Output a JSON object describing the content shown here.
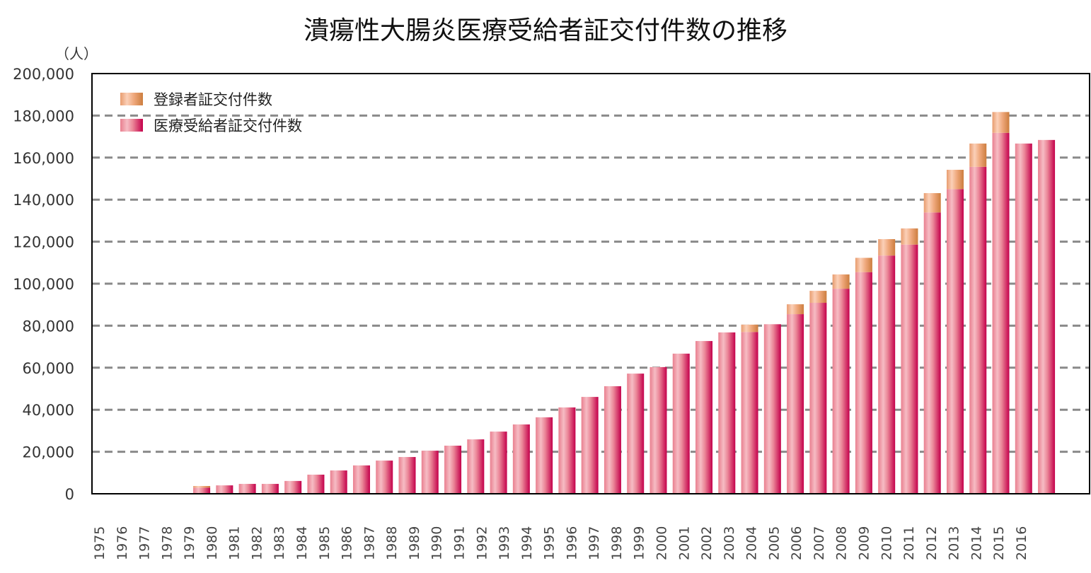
{
  "chart_data": {
    "type": "bar",
    "stacked": true,
    "title": "潰瘍性大腸炎医療受給者証交付件数の推移",
    "ylabel": "（人）",
    "xlabel": "",
    "ylim": [
      0,
      200000
    ],
    "yticks": [
      "0",
      "20,000",
      "40,000",
      "60,000",
      "80,000",
      "100,000",
      "120,000",
      "140,000",
      "160,000",
      "180,000",
      "200,000"
    ],
    "ytick_values": [
      0,
      20000,
      40000,
      60000,
      80000,
      100000,
      120000,
      140000,
      160000,
      180000,
      200000
    ],
    "grid": true,
    "legend_position": "top-left",
    "categories": [
      "1975",
      "1976",
      "1977",
      "1978",
      "1979",
      "1980",
      "1981",
      "1982",
      "1983",
      "1984",
      "1985",
      "1986",
      "1987",
      "1988",
      "1989",
      "1990",
      "1991",
      "1992",
      "1993",
      "1994",
      "1995",
      "1996",
      "1997",
      "1998",
      "1999",
      "2000",
      "2001",
      "2002",
      "2003",
      "2004",
      "2005",
      "2006",
      "2007",
      "2008",
      "2009",
      "2010",
      "2011",
      "2012",
      "2013",
      "2014",
      "2015",
      "2016"
    ],
    "series": [
      {
        "name": "医療受給者証交付件数",
        "color": "#d81b5a",
        "values": [
          0,
          0,
          0,
          0,
          2900,
          4000,
          4700,
          4700,
          6100,
          9100,
          11100,
          13500,
          15800,
          17500,
          20500,
          22900,
          25900,
          29600,
          33000,
          36400,
          41100,
          46100,
          51200,
          57200,
          60300,
          66700,
          72700,
          76800,
          77000,
          80700,
          85500,
          90900,
          97600,
          105500,
          113400,
          118600,
          133900,
          145000,
          155600,
          171800,
          166700,
          168400
        ]
      },
      {
        "name": "登録者証交付件数",
        "color": "#e8a070",
        "values": [
          0,
          0,
          0,
          0,
          800,
          0,
          0,
          0,
          0,
          0,
          0,
          0,
          0,
          0,
          0,
          0,
          0,
          0,
          0,
          0,
          0,
          0,
          0,
          0,
          0,
          0,
          0,
          0,
          3500,
          0,
          4700,
          5700,
          6800,
          6800,
          7800,
          7700,
          9200,
          9200,
          11100,
          9900,
          0,
          0
        ]
      }
    ]
  }
}
